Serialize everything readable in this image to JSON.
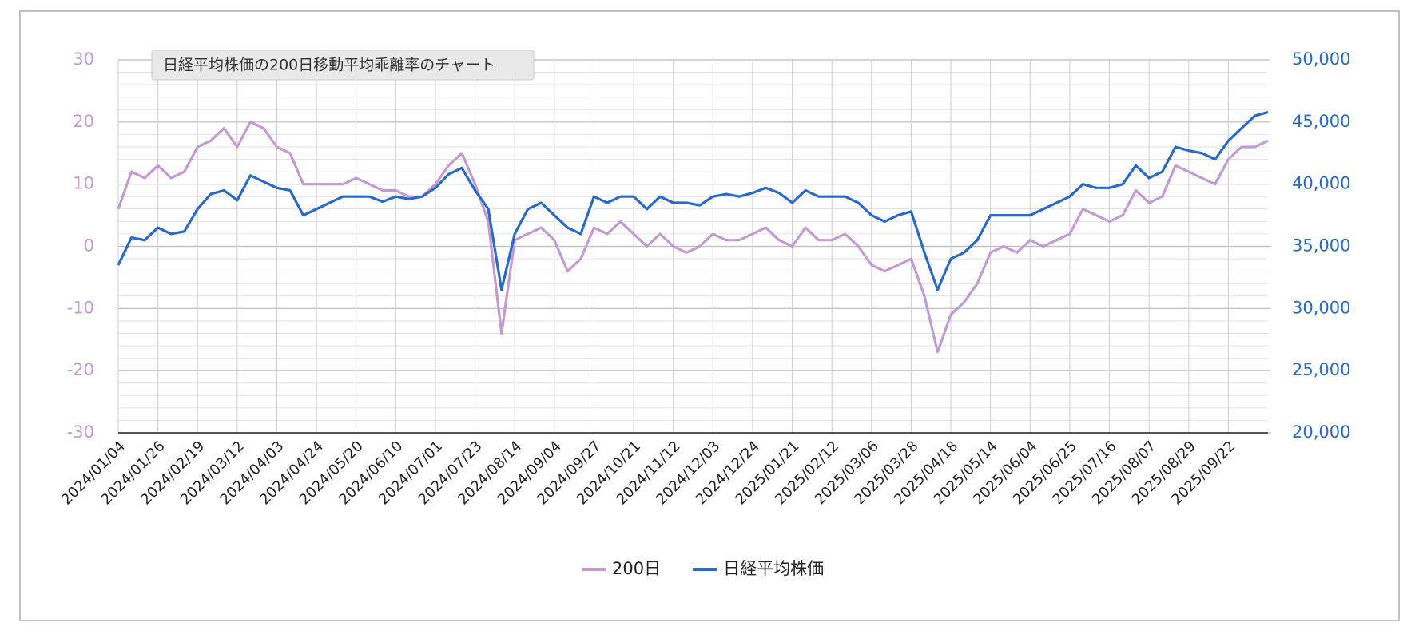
{
  "chart_data": {
    "type": "line",
    "title": "日経平均株価の200日移動平均乖離率のチャート",
    "categories": [
      "2024/01/04",
      null,
      null,
      "2024/01/26",
      null,
      null,
      "2024/02/19",
      null,
      null,
      "2024/03/12",
      null,
      null,
      "2024/04/03",
      null,
      null,
      "2024/04/24",
      null,
      null,
      "2024/05/20",
      null,
      null,
      "2024/06/10",
      null,
      null,
      "2024/07/01",
      null,
      null,
      "2024/07/23",
      null,
      null,
      "2024/08/14",
      null,
      null,
      "2024/09/04",
      null,
      null,
      "2024/09/27",
      null,
      null,
      "2024/10/21",
      null,
      null,
      "2024/11/12",
      null,
      null,
      "2024/12/03",
      null,
      null,
      "2024/12/24",
      null,
      null,
      "2025/01/21",
      null,
      null,
      "2025/02/12",
      null,
      null,
      "2025/03/06",
      null,
      null,
      "2025/03/28",
      null,
      null,
      "2025/04/18",
      null,
      null,
      "2025/05/14",
      null,
      null,
      "2025/06/04",
      null,
      null,
      "2025/06/25",
      null,
      null,
      "2025/07/16",
      null,
      null,
      "2025/08/07",
      null,
      null,
      "2025/08/29",
      null,
      null,
      "2025/09/22",
      null,
      null,
      null
    ],
    "series": [
      {
        "name": "200日",
        "color": "#c39bd3",
        "values": [
          6,
          12,
          11,
          13,
          11,
          12,
          16,
          17,
          19,
          16,
          20,
          19,
          16,
          15,
          10,
          10,
          10,
          10,
          11,
          10,
          9,
          9,
          8,
          8,
          10,
          13,
          15,
          10,
          4,
          -14,
          1,
          2,
          3,
          1,
          -4,
          -2,
          3,
          2,
          4,
          2,
          0,
          2,
          0,
          -1,
          0,
          2,
          1,
          1,
          2,
          3,
          1,
          0,
          3,
          1,
          1,
          2,
          0,
          -3,
          -4,
          -3,
          -2,
          -8,
          -17,
          -11,
          -9,
          -6,
          -1,
          0,
          -1,
          1,
          0,
          1,
          2,
          6,
          5,
          4,
          5,
          9,
          7,
          8,
          13,
          12,
          11,
          10,
          14,
          16,
          16,
          17
        ]
      },
      {
        "name": "日経平均株価",
        "color": "#2a6ac4",
        "axis": "y2",
        "values": [
          33500,
          35700,
          35500,
          36500,
          36000,
          36200,
          38000,
          39200,
          39500,
          38700,
          40700,
          40200,
          39700,
          39500,
          37500,
          38000,
          38500,
          39000,
          39000,
          39000,
          38600,
          39000,
          38800,
          39000,
          39700,
          40800,
          41300,
          39500,
          38000,
          31500,
          36000,
          38000,
          38500,
          37500,
          36500,
          36000,
          39000,
          38500,
          39000,
          39000,
          38000,
          39000,
          38500,
          38500,
          38300,
          39000,
          39200,
          39000,
          39300,
          39700,
          39300,
          38500,
          39500,
          39000,
          39000,
          39000,
          38500,
          37500,
          37000,
          37500,
          37800,
          34500,
          31500,
          34000,
          34500,
          35500,
          37500,
          37500,
          37500,
          37500,
          38000,
          38500,
          39000,
          40000,
          39700,
          39700,
          40000,
          41500,
          40500,
          41000,
          43000,
          42700,
          42500,
          42000,
          43500,
          44500,
          45500,
          45800
        ]
      }
    ],
    "ylim": [
      -30,
      30
    ],
    "yticks": [
      -30,
      -20,
      -10,
      0,
      10,
      20,
      30
    ],
    "y2lim": [
      20000,
      50000
    ],
    "y2ticks": [
      {
        "value": 20000,
        "label": "20,000"
      },
      {
        "value": 25000,
        "label": "25,000"
      },
      {
        "value": 30000,
        "label": "30,000"
      },
      {
        "value": 35000,
        "label": "35,000"
      },
      {
        "value": 40000,
        "label": "40,000"
      },
      {
        "value": 45000,
        "label": "45,000"
      },
      {
        "value": 50000,
        "label": "50,000"
      }
    ],
    "grid": true
  }
}
